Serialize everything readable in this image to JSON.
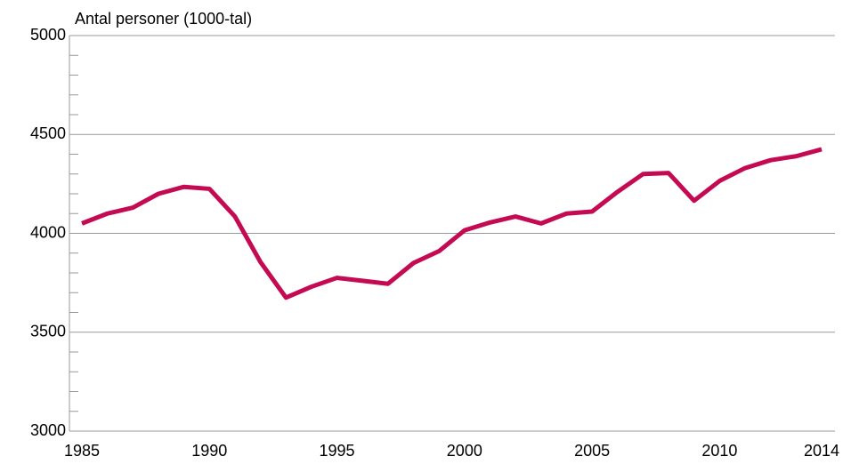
{
  "chart_data": {
    "type": "line",
    "y_label": "Antal personer (1000-tal)",
    "x": [
      1985,
      1986,
      1987,
      1988,
      1989,
      1990,
      1991,
      1992,
      1993,
      1994,
      1995,
      1996,
      1997,
      1998,
      1999,
      2000,
      2001,
      2002,
      2003,
      2004,
      2005,
      2006,
      2007,
      2008,
      2009,
      2010,
      2011,
      2012,
      2013,
      2014
    ],
    "series": [
      {
        "name": null,
        "color": "#c40a52",
        "values": [
          4050,
          4100,
          4130,
          4200,
          4235,
          4225,
          4085,
          3855,
          3675,
          3730,
          3775,
          3760,
          3745,
          3850,
          3910,
          4015,
          4055,
          4085,
          4050,
          4100,
          4110,
          4210,
          4300,
          4305,
          4165,
          4265,
          4330,
          4370,
          4390,
          4425
        ]
      }
    ],
    "xlim": [
      1985,
      2014
    ],
    "xticks": [
      1985,
      1990,
      1995,
      2000,
      2005,
      2010,
      2014
    ],
    "ylim": [
      3000,
      5000
    ],
    "yticks": [
      3000,
      3500,
      4000,
      4500,
      5000
    ],
    "yminorticks": [
      3100,
      3200,
      3300,
      3400,
      3600,
      3700,
      3800,
      3900,
      4100,
      4200,
      4300,
      4400,
      4600,
      4700,
      4800,
      4900
    ],
    "grid": true
  }
}
